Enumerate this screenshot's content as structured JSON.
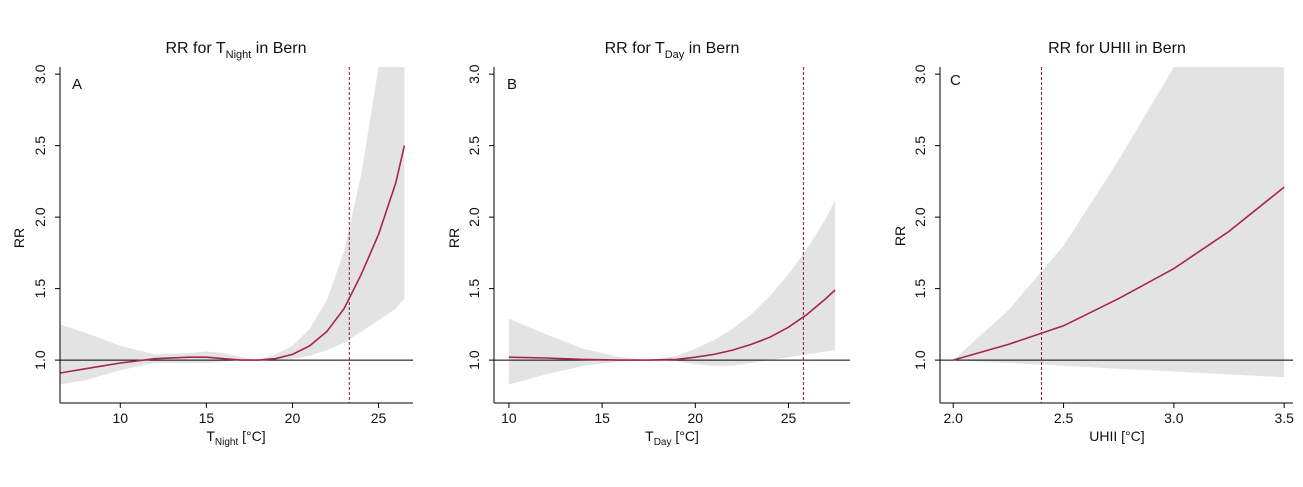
{
  "chart_data": [
    {
      "type": "line",
      "panel": "A",
      "title": {
        "main": "RR for  T",
        "sub": "Night",
        "rest": "  in Bern"
      },
      "xlabel": {
        "main": "T",
        "sub": "Night",
        "rest": " [°C]"
      },
      "ylabel": "RR",
      "xlim": [
        6.5,
        27
      ],
      "ylim": [
        0.7,
        3.05
      ],
      "xticks": [
        10,
        15,
        20,
        25
      ],
      "yticks": [
        1.0,
        1.5,
        2.0,
        2.5,
        3.0
      ],
      "reference_line": 1.0,
      "threshold": 23.3,
      "series": [
        {
          "x": [
            6.5,
            8,
            10,
            12,
            14,
            15,
            16,
            17,
            18,
            19,
            20,
            21,
            22,
            23,
            24,
            25,
            26,
            26.5
          ],
          "rr": [
            0.91,
            0.94,
            0.98,
            1.01,
            1.02,
            1.02,
            1.01,
            1.0,
            1.0,
            1.01,
            1.04,
            1.1,
            1.2,
            1.36,
            1.6,
            1.88,
            2.24,
            2.5
          ],
          "lower": [
            0.83,
            0.86,
            0.93,
            0.98,
            0.98,
            0.98,
            0.99,
            1.0,
            1.0,
            1.0,
            1.01,
            1.03,
            1.07,
            1.12,
            1.2,
            1.28,
            1.36,
            1.43
          ],
          "upper": [
            1.25,
            1.19,
            1.1,
            1.04,
            1.05,
            1.06,
            1.05,
            1.02,
            1.0,
            1.04,
            1.1,
            1.22,
            1.42,
            1.76,
            2.3,
            3.05,
            3.05,
            3.05
          ]
        }
      ],
      "colors": {
        "line": "#a8244a",
        "band": "#e3e3e3",
        "threshold": "#8b1a2b"
      }
    },
    {
      "type": "line",
      "panel": "B",
      "title": {
        "main": "RR for  T",
        "sub": "Day",
        "rest": "  in Bern"
      },
      "xlabel": {
        "main": "T",
        "sub": "Day",
        "rest": " [°C]"
      },
      "ylabel": "RR",
      "xlim": [
        9.2,
        28.3
      ],
      "ylim": [
        0.7,
        3.05
      ],
      "xticks": [
        10,
        15,
        20,
        25
      ],
      "yticks": [
        1.0,
        1.5,
        2.0,
        2.5,
        3.0
      ],
      "reference_line": 1.0,
      "threshold": 25.8,
      "series": [
        {
          "x": [
            10,
            12,
            14,
            16,
            17.5,
            19,
            20,
            21,
            22,
            23,
            24,
            25,
            26,
            27,
            27.5
          ],
          "rr": [
            1.02,
            1.015,
            1.005,
            1.0,
            1.0,
            1.005,
            1.02,
            1.04,
            1.07,
            1.11,
            1.16,
            1.23,
            1.32,
            1.43,
            1.49
          ],
          "lower": [
            0.83,
            0.9,
            0.96,
            0.99,
            1.0,
            0.99,
            0.97,
            0.96,
            0.96,
            0.98,
            1.0,
            1.02,
            1.04,
            1.06,
            1.07
          ],
          "upper": [
            1.29,
            1.18,
            1.08,
            1.02,
            1.0,
            1.03,
            1.08,
            1.14,
            1.22,
            1.32,
            1.45,
            1.6,
            1.78,
            1.99,
            2.12
          ]
        }
      ],
      "colors": {
        "line": "#a8244a",
        "band": "#e3e3e3",
        "threshold": "#8b1a2b"
      }
    },
    {
      "type": "line",
      "panel": "C",
      "title": {
        "main": "RR for UHII in Bern",
        "sub": "",
        "rest": ""
      },
      "xlabel": {
        "main": "UHII [°C]",
        "sub": "",
        "rest": ""
      },
      "ylabel": "RR",
      "xlim": [
        1.94,
        3.54
      ],
      "ylim": [
        0.7,
        3.05
      ],
      "xticks": [
        2.0,
        2.5,
        3.0,
        3.5
      ],
      "yticks": [
        1.0,
        1.5,
        2.0,
        2.5,
        3.0
      ],
      "reference_line": 1.0,
      "threshold": 2.4,
      "series": [
        {
          "x": [
            2.0,
            2.25,
            2.5,
            2.75,
            3.0,
            3.25,
            3.5
          ],
          "rr": [
            1.0,
            1.11,
            1.24,
            1.43,
            1.64,
            1.9,
            2.21
          ],
          "lower": [
            1.0,
            0.98,
            0.96,
            0.94,
            0.92,
            0.9,
            0.88
          ],
          "upper": [
            1.0,
            1.35,
            1.8,
            2.4,
            3.05,
            3.05,
            3.05
          ]
        }
      ],
      "colors": {
        "line": "#a8244a",
        "band": "#e3e3e3",
        "threshold": "#8b1a2b"
      }
    }
  ]
}
